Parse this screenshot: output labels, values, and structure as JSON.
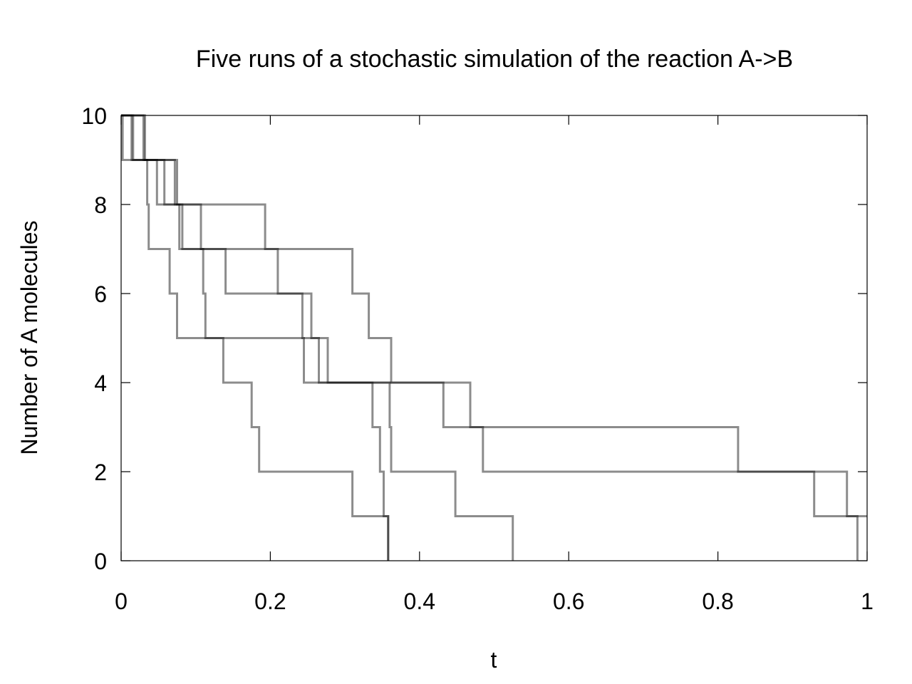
{
  "chart_data": {
    "type": "line",
    "step": "post",
    "title": "Five runs of a stochastic simulation of the reaction A->B",
    "xlabel": "t",
    "ylabel": "Number of A molecules",
    "xlim": [
      0,
      1
    ],
    "ylim": [
      0,
      10
    ],
    "x_ticks": [
      0,
      0.2,
      0.4,
      0.6,
      0.8,
      1
    ],
    "x_tick_labels": [
      "0",
      "0.2",
      "0.4",
      "0.6",
      "0.8",
      "1"
    ],
    "y_ticks": [
      0,
      2,
      4,
      6,
      8,
      10
    ],
    "y_tick_labels": [
      "0",
      "2",
      "4",
      "6",
      "8",
      "10"
    ],
    "grid": false,
    "line_color": "#000000",
    "line_opacity": 0.45,
    "series": [
      {
        "points": [
          [
            0,
            10
          ],
          [
            0.002,
            9
          ],
          [
            0.035,
            8
          ],
          [
            0.037,
            7
          ],
          [
            0.065,
            6
          ],
          [
            0.075,
            5
          ],
          [
            0.137,
            4
          ],
          [
            0.175,
            3
          ],
          [
            0.185,
            2
          ],
          [
            0.31,
            1
          ],
          [
            0.358,
            0
          ]
        ]
      },
      {
        "points": [
          [
            0,
            10
          ],
          [
            0.014,
            9
          ],
          [
            0.048,
            8
          ],
          [
            0.078,
            7
          ],
          [
            0.11,
            6
          ],
          [
            0.113,
            5
          ],
          [
            0.245,
            4
          ],
          [
            0.337,
            3
          ],
          [
            0.347,
            2
          ],
          [
            0.352,
            1
          ],
          [
            0.358,
            0
          ]
        ]
      },
      {
        "points": [
          [
            0,
            10
          ],
          [
            0.016,
            9
          ],
          [
            0.058,
            8
          ],
          [
            0.082,
            7
          ],
          [
            0.14,
            6
          ],
          [
            0.243,
            5
          ],
          [
            0.265,
            4
          ],
          [
            0.36,
            3
          ],
          [
            0.362,
            2
          ],
          [
            0.448,
            1
          ],
          [
            0.525,
            0
          ]
        ]
      },
      {
        "points": [
          [
            0,
            10
          ],
          [
            0.03,
            9
          ],
          [
            0.072,
            8
          ],
          [
            0.107,
            7
          ],
          [
            0.21,
            6
          ],
          [
            0.255,
            5
          ],
          [
            0.277,
            4
          ],
          [
            0.432,
            3
          ],
          [
            0.485,
            2
          ],
          [
            0.929,
            1
          ],
          [
            0.987,
            0
          ]
        ]
      },
      {
        "points": [
          [
            0,
            10
          ],
          [
            0.032,
            9
          ],
          [
            0.075,
            8
          ],
          [
            0.193,
            7
          ],
          [
            0.31,
            6
          ],
          [
            0.332,
            5
          ],
          [
            0.362,
            4
          ],
          [
            0.468,
            3
          ],
          [
            0.827,
            2
          ],
          [
            0.973,
            1
          ]
        ]
      }
    ]
  }
}
